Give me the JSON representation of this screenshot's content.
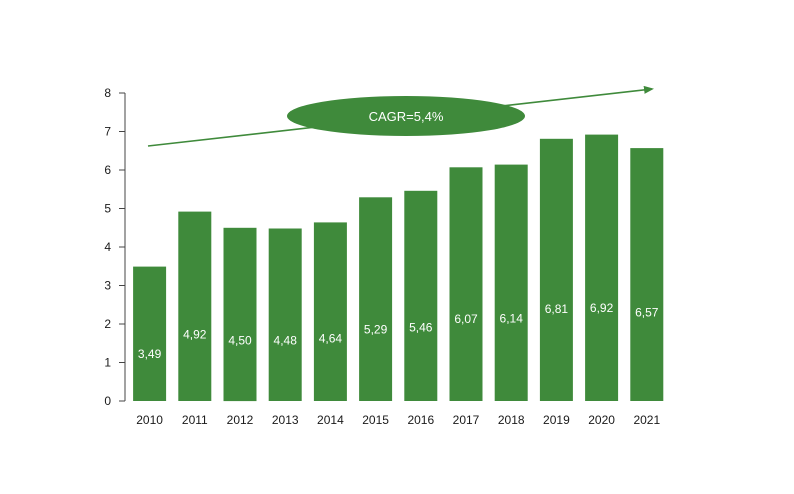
{
  "chart_data": {
    "type": "bar",
    "categories": [
      "2010",
      "2011",
      "2012",
      "2013",
      "2014",
      "2015",
      "2016",
      "2017",
      "2018",
      "2019",
      "2020",
      "2021"
    ],
    "values": [
      3.49,
      4.92,
      4.5,
      4.48,
      4.64,
      5.29,
      5.46,
      6.07,
      6.14,
      6.81,
      6.92,
      6.57
    ],
    "data_labels": [
      "3,49",
      "4,92",
      "4,50",
      "4,48",
      "4,64",
      "5,29",
      "5,46",
      "6,07",
      "6,14",
      "6,81",
      "6,92",
      "6,57"
    ],
    "yticks": [
      "0",
      "1",
      "2",
      "3",
      "4",
      "5",
      "6",
      "7",
      "8"
    ],
    "ylim": [
      0,
      8
    ],
    "grid": false,
    "annotation": {
      "text": "CAGR=5,4%"
    },
    "colors": {
      "bar": "#3f8a3b",
      "arrow": "#3f8a3b",
      "axis": "#444444"
    }
  }
}
